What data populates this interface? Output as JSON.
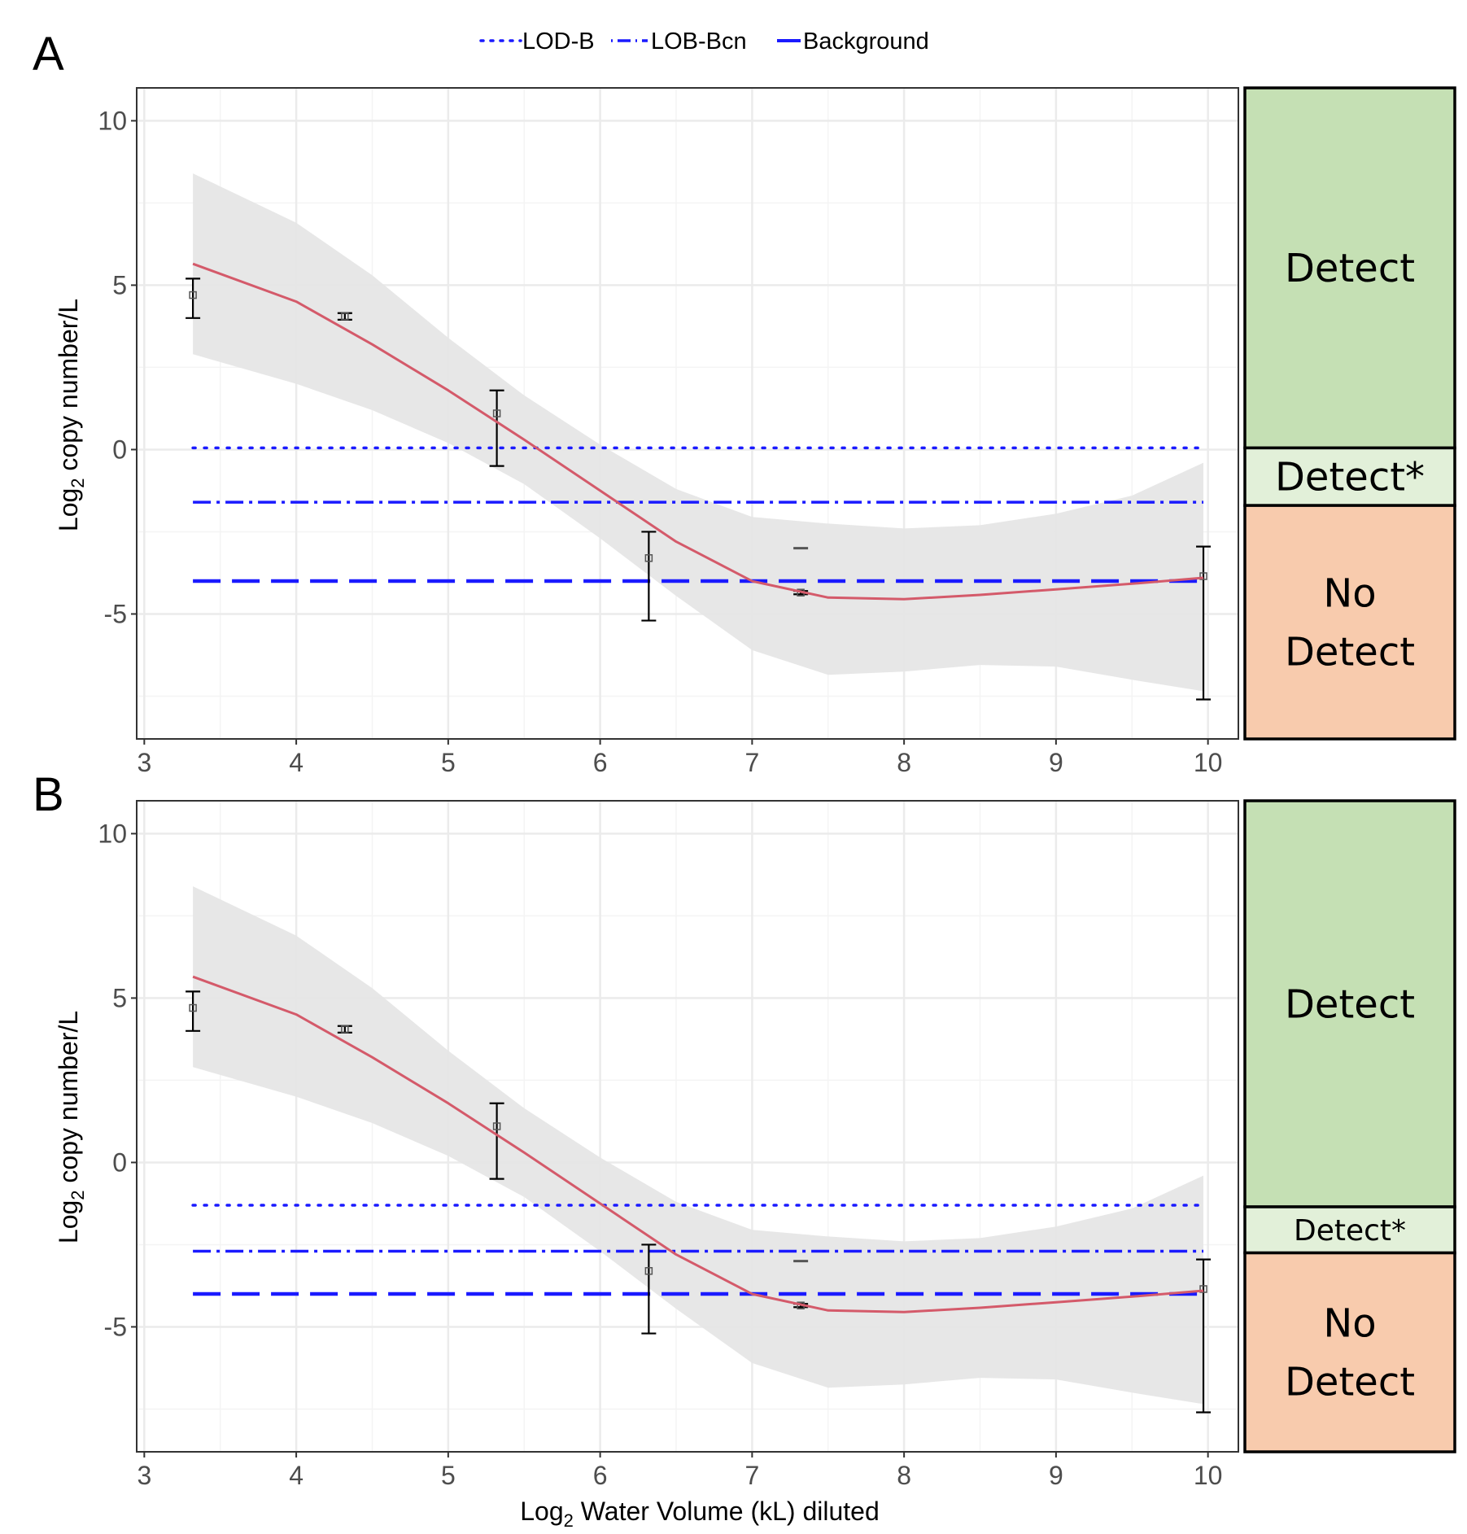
{
  "chart_data": {
    "type": "line",
    "legend": {
      "placement": "top",
      "entries": [
        {
          "name": "LOD-B",
          "style": "dotted",
          "color": "#1a1aff"
        },
        {
          "name": "LOB-Bcn",
          "style": "dashdot",
          "color": "#1a1aff"
        },
        {
          "name": "Background",
          "style": "dashed",
          "color": "#1a1aff"
        }
      ]
    },
    "colors": {
      "fit": "#d45a6a",
      "band": "#e6e6e6",
      "reference": "#1a1aff",
      "error_bar": "#000000",
      "grid": "#ebebeb",
      "detect": "#c5e0b4",
      "detect_star": "#e2f0d9",
      "no_detect": "#f8cbad"
    },
    "xlim": [
      2.95,
      10.2
    ],
    "ylim": [
      -8.8,
      11.0
    ],
    "x_ticks": [
      3,
      4,
      5,
      6,
      7,
      8,
      9,
      10
    ],
    "y_ticks": [
      10,
      5,
      0,
      -5
    ],
    "y_tick_labels": [
      "10",
      "5",
      "0",
      "-5"
    ],
    "ylabel_main": "Log",
    "ylabel_sub": "2",
    "ylabel_rest": " copy number/L",
    "xlabel_main": "Log",
    "xlabel_sub": "2",
    "xlabel_rest": " Water Volume (kL) diluted",
    "panels": [
      {
        "letter": "A",
        "series": {
          "points": [
            {
              "x": 3.32,
              "y": 4.7,
              "ymin": 4.0,
              "ymax": 5.2
            },
            {
              "x": 4.32,
              "y": 4.05,
              "ymin": 3.95,
              "ymax": 4.15
            },
            {
              "x": 5.32,
              "y": 1.1,
              "ymin": -0.5,
              "ymax": 1.8
            },
            {
              "x": 6.32,
              "y": -3.3,
              "ymin": -5.2,
              "ymax": -2.5
            },
            {
              "x": 7.32,
              "y": -4.35,
              "ymin": -4.4,
              "ymax": -4.3
            },
            {
              "x": 9.97,
              "y": -3.85,
              "ymin": -7.6,
              "ymax": -2.95
            }
          ],
          "fit_x": [
            3.32,
            4.0,
            4.5,
            5.0,
            5.5,
            6.0,
            6.5,
            7.0,
            7.5,
            8.0,
            8.5,
            9.0,
            9.5,
            9.97
          ],
          "fit_y": [
            5.65,
            4.5,
            3.2,
            1.8,
            0.3,
            -1.25,
            -2.8,
            -4.0,
            -4.5,
            -4.55,
            -4.42,
            -4.25,
            -4.08,
            -3.9
          ],
          "band_lower": [
            2.9,
            2.0,
            1.2,
            0.2,
            -1.05,
            -2.7,
            -4.45,
            -6.1,
            -6.85,
            -6.75,
            -6.55,
            -6.6,
            -7.0,
            -7.35
          ],
          "band_upper": [
            8.4,
            6.9,
            5.3,
            3.4,
            1.65,
            0.15,
            -1.2,
            -2.05,
            -2.25,
            -2.4,
            -2.3,
            -1.95,
            -1.4,
            -0.4
          ],
          "orphan_bar": {
            "x": 7.32,
            "y": -3.0
          }
        },
        "reference_lines": [
          {
            "name": "LOD-B",
            "y": 0.05
          },
          {
            "name": "LOB-Bcn",
            "y": -1.6
          },
          {
            "name": "Background",
            "y": -4.0
          }
        ],
        "zones": [
          {
            "label": "Detect",
            "from": 11.0,
            "to": 0.05
          },
          {
            "label": "Detect*",
            "from": 0.05,
            "to": -1.7
          },
          {
            "label_lines": [
              "No",
              "Detect"
            ],
            "from": -1.7,
            "to": -8.8
          }
        ]
      },
      {
        "letter": "B",
        "series": {
          "points": [
            {
              "x": 3.32,
              "y": 4.7,
              "ymin": 4.0,
              "ymax": 5.2
            },
            {
              "x": 4.32,
              "y": 4.05,
              "ymin": 3.95,
              "ymax": 4.15
            },
            {
              "x": 5.32,
              "y": 1.1,
              "ymin": -0.5,
              "ymax": 1.8
            },
            {
              "x": 6.32,
              "y": -3.3,
              "ymin": -5.2,
              "ymax": -2.5
            },
            {
              "x": 7.32,
              "y": -4.35,
              "ymin": -4.4,
              "ymax": -4.3
            },
            {
              "x": 9.97,
              "y": -3.85,
              "ymin": -7.6,
              "ymax": -2.95
            }
          ],
          "fit_x": [
            3.32,
            4.0,
            4.5,
            5.0,
            5.5,
            6.0,
            6.5,
            7.0,
            7.5,
            8.0,
            8.5,
            9.0,
            9.5,
            9.97
          ],
          "fit_y": [
            5.65,
            4.5,
            3.2,
            1.8,
            0.3,
            -1.25,
            -2.8,
            -4.0,
            -4.5,
            -4.55,
            -4.42,
            -4.25,
            -4.08,
            -3.9
          ],
          "band_lower": [
            2.9,
            2.0,
            1.2,
            0.2,
            -1.05,
            -2.7,
            -4.45,
            -6.1,
            -6.85,
            -6.75,
            -6.55,
            -6.6,
            -7.0,
            -7.35
          ],
          "band_upper": [
            8.4,
            6.9,
            5.3,
            3.4,
            1.65,
            0.15,
            -1.2,
            -2.05,
            -2.25,
            -2.4,
            -2.3,
            -1.95,
            -1.4,
            -0.4
          ],
          "orphan_bar": {
            "x": 7.32,
            "y": -3.0
          }
        },
        "reference_lines": [
          {
            "name": "LOD-B",
            "y": -1.3
          },
          {
            "name": "LOB-Bcn",
            "y": -2.7
          },
          {
            "name": "Background",
            "y": -4.0
          }
        ],
        "zones": [
          {
            "label": "Detect",
            "from": 11.0,
            "to": -1.35
          },
          {
            "label": "Detect*",
            "from": -1.35,
            "to": -2.75
          },
          {
            "label_lines": [
              "No",
              "Detect"
            ],
            "from": -2.75,
            "to": -8.8
          }
        ]
      }
    ]
  }
}
